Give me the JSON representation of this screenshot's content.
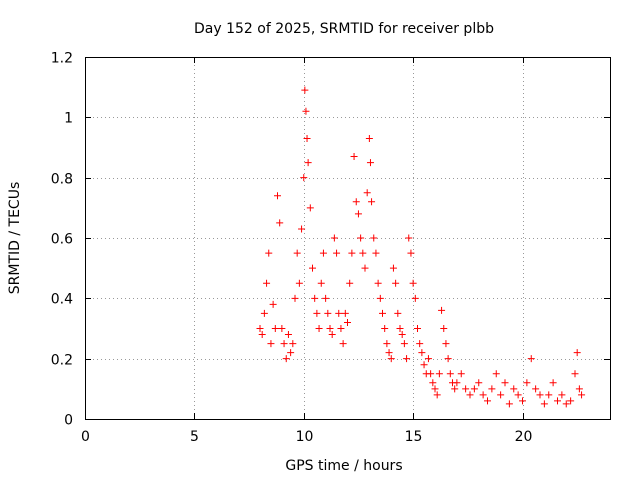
{
  "chart_data": {
    "type": "scatter",
    "title": "Day 152 of 2025, SRMTID for receiver plbb",
    "xlabel": "GPS time / hours",
    "ylabel": "SRMTID / TECUs",
    "xlim": [
      0,
      24
    ],
    "ylim": [
      0,
      1.2
    ],
    "xticks": [
      0,
      5,
      10,
      15,
      20
    ],
    "xtick_labels": [
      "0",
      "5",
      "10",
      "15",
      "20"
    ],
    "yticks": [
      0,
      0.2,
      0.4,
      0.6,
      0.8,
      1.0,
      1.2
    ],
    "ytick_labels": [
      "0",
      "0.2",
      "0.4",
      "0.6",
      "0.8",
      "1",
      "1.2"
    ],
    "grid": true,
    "marker_color": "#ff0000",
    "series": [
      {
        "name": "SRMTID",
        "marker": "plus",
        "x": [
          8.0,
          8.1,
          8.2,
          8.3,
          8.4,
          8.5,
          8.6,
          8.7,
          8.8,
          8.9,
          9.0,
          9.1,
          9.2,
          9.3,
          9.4,
          9.5,
          9.6,
          9.7,
          9.8,
          9.9,
          10.0,
          10.05,
          10.1,
          10.15,
          10.2,
          10.3,
          10.4,
          10.5,
          10.6,
          10.7,
          10.8,
          10.9,
          11.0,
          11.1,
          11.2,
          11.3,
          11.4,
          11.5,
          11.6,
          11.7,
          11.8,
          11.9,
          12.0,
          12.1,
          12.2,
          12.3,
          12.4,
          12.5,
          12.6,
          12.7,
          12.8,
          12.9,
          13.0,
          13.05,
          13.1,
          13.2,
          13.3,
          13.4,
          13.5,
          13.6,
          13.7,
          13.8,
          13.9,
          14.0,
          14.1,
          14.2,
          14.3,
          14.4,
          14.5,
          14.6,
          14.7,
          14.8,
          14.9,
          15.0,
          15.1,
          15.2,
          15.3,
          15.4,
          15.5,
          15.6,
          15.7,
          15.8,
          15.9,
          16.0,
          16.1,
          16.2,
          16.3,
          16.4,
          16.5,
          16.6,
          16.7,
          16.8,
          16.9,
          17.0,
          17.2,
          17.4,
          17.6,
          17.8,
          18.0,
          18.2,
          18.4,
          18.6,
          18.8,
          19.0,
          19.2,
          19.4,
          19.6,
          19.8,
          20.0,
          20.2,
          20.4,
          20.6,
          20.8,
          21.0,
          21.2,
          21.4,
          21.6,
          21.8,
          22.0,
          22.2,
          22.4,
          22.5,
          22.6,
          22.7
        ],
        "y": [
          0.3,
          0.28,
          0.35,
          0.45,
          0.55,
          0.25,
          0.38,
          0.3,
          0.74,
          0.65,
          0.3,
          0.25,
          0.2,
          0.28,
          0.22,
          0.25,
          0.4,
          0.55,
          0.45,
          0.63,
          0.8,
          1.09,
          1.02,
          0.93,
          0.85,
          0.7,
          0.5,
          0.4,
          0.35,
          0.3,
          0.45,
          0.55,
          0.4,
          0.35,
          0.3,
          0.28,
          0.6,
          0.55,
          0.35,
          0.3,
          0.25,
          0.35,
          0.32,
          0.45,
          0.55,
          0.87,
          0.72,
          0.68,
          0.6,
          0.55,
          0.5,
          0.75,
          0.93,
          0.85,
          0.72,
          0.6,
          0.55,
          0.45,
          0.4,
          0.35,
          0.3,
          0.25,
          0.22,
          0.2,
          0.5,
          0.45,
          0.35,
          0.3,
          0.28,
          0.25,
          0.2,
          0.6,
          0.55,
          0.45,
          0.4,
          0.3,
          0.25,
          0.22,
          0.18,
          0.15,
          0.2,
          0.15,
          0.12,
          0.1,
          0.08,
          0.15,
          0.36,
          0.3,
          0.25,
          0.2,
          0.15,
          0.12,
          0.1,
          0.12,
          0.15,
          0.1,
          0.08,
          0.1,
          0.12,
          0.08,
          0.06,
          0.1,
          0.15,
          0.08,
          0.12,
          0.05,
          0.1,
          0.08,
          0.06,
          0.12,
          0.2,
          0.1,
          0.08,
          0.05,
          0.08,
          0.12,
          0.06,
          0.08,
          0.05,
          0.06,
          0.15,
          0.22,
          0.1,
          0.08
        ]
      }
    ]
  }
}
